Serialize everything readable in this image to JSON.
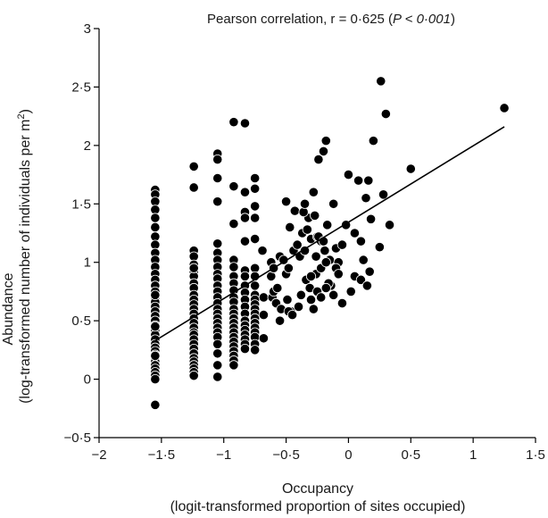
{
  "chart_data": {
    "type": "scatter",
    "title_main": "Pearson correlation, r = 0·625 (",
    "title_p": "P < 0·001",
    "title_close": ")",
    "xlabel_line1": "Occupancy",
    "xlabel_line2": "(logit-transformed proportion of sites occupied)",
    "ylabel_line1": "Abundance",
    "ylabel_line2_pre": "(log-transformed number of individuals per m",
    "ylabel_sup": "2",
    "ylabel_line2_post": ")",
    "xlim": [
      -2,
      1.5
    ],
    "ylim": [
      -0.5,
      3
    ],
    "xticks": [
      -2,
      -1.5,
      -1,
      -0.5,
      0,
      0.5,
      1,
      1.5
    ],
    "xtick_labels": [
      "−2",
      "−1·5",
      "−1",
      "−0·5",
      "0",
      "0·5",
      "1",
      "1·5"
    ],
    "yticks": [
      -0.5,
      0,
      0.5,
      1,
      1.5,
      2,
      2.5,
      3
    ],
    "ytick_labels": [
      "−0·5",
      "0",
      "0·5",
      "1",
      "1·5",
      "2",
      "2·5",
      "3"
    ],
    "grid": false,
    "regression_line": {
      "x": [
        -1.55,
        1.25
      ],
      "y": [
        0.33,
        2.16
      ]
    },
    "x": [
      -1.55,
      -1.55,
      -1.55,
      -1.55,
      -1.55,
      -1.55,
      -1.55,
      -1.55,
      -1.55,
      -1.55,
      -1.55,
      -1.55,
      -1.55,
      -1.55,
      -1.55,
      -1.55,
      -1.55,
      -1.55,
      -1.55,
      -1.55,
      -1.55,
      -1.55,
      -1.55,
      -1.55,
      -1.55,
      -1.55,
      -1.55,
      -1.55,
      -1.55,
      -1.55,
      -1.55,
      -1.55,
      -1.55,
      -1.55,
      -1.55,
      -1.55,
      -1.55,
      -1.55,
      -1.55,
      -1.55,
      -1.24,
      -1.24,
      -1.24,
      -1.24,
      -1.24,
      -1.24,
      -1.24,
      -1.24,
      -1.24,
      -1.24,
      -1.24,
      -1.24,
      -1.24,
      -1.24,
      -1.24,
      -1.24,
      -1.24,
      -1.24,
      -1.24,
      -1.24,
      -1.24,
      -1.24,
      -1.24,
      -1.24,
      -1.24,
      -1.24,
      -1.24,
      -1.24,
      -1.24,
      -1.24,
      -1.05,
      -1.05,
      -1.05,
      -1.05,
      -1.05,
      -1.05,
      -1.05,
      -1.05,
      -1.05,
      -1.05,
      -1.05,
      -1.05,
      -1.05,
      -1.05,
      -1.05,
      -1.05,
      -1.05,
      -1.05,
      -1.05,
      -1.05,
      -1.05,
      -1.05,
      -1.05,
      -1.05,
      -1.05,
      -0.92,
      -0.92,
      -0.92,
      -0.92,
      -0.92,
      -0.92,
      -0.92,
      -0.92,
      -0.92,
      -0.92,
      -0.92,
      -0.92,
      -0.92,
      -0.92,
      -0.92,
      -0.92,
      -0.92,
      -0.92,
      -0.92,
      -0.92,
      -0.92,
      -0.92,
      -0.92,
      -0.83,
      -0.83,
      -0.83,
      -0.83,
      -0.83,
      -0.83,
      -0.83,
      -0.83,
      -0.83,
      -0.83,
      -0.83,
      -0.83,
      -0.83,
      -0.83,
      -0.83,
      -0.83,
      -0.83,
      -0.83,
      -0.83,
      -0.75,
      -0.75,
      -0.75,
      -0.75,
      -0.75,
      -0.75,
      -0.75,
      -0.75,
      -0.75,
      -0.75,
      -0.75,
      -0.75,
      -0.75,
      -0.75,
      -0.75,
      -0.75,
      -0.75,
      -0.75,
      -0.75,
      -0.75,
      -0.69,
      -0.68,
      -0.68,
      -0.68,
      -0.62,
      -0.62,
      -0.61,
      -0.6,
      -0.6,
      -0.58,
      -0.57,
      -0.55,
      -0.54,
      -0.52,
      -0.5,
      -0.5,
      -0.49,
      -0.48,
      -0.47,
      -0.46,
      -0.44,
      -0.43,
      -0.41,
      -0.4,
      -0.39,
      -0.38,
      -0.37,
      -0.35,
      -0.34,
      -0.33,
      -0.32,
      -0.31,
      -0.3,
      -0.28,
      -0.27,
      -0.26,
      -0.25,
      -0.24,
      -0.22,
      -0.2,
      -0.19,
      -0.18,
      -0.17,
      -0.15,
      -0.14,
      -0.12,
      -0.1,
      -0.08,
      -0.05,
      -0.02,
      -0.36,
      -0.35,
      -0.3,
      -0.26,
      -0.24,
      -0.22,
      -0.2,
      -0.18,
      -0.16,
      -0.12,
      -0.1,
      -0.08,
      -0.05,
      0.0,
      0.02,
      0.05,
      0.08,
      0.1,
      0.12,
      0.14,
      0.16,
      0.17,
      0.18,
      0.2,
      0.25,
      0.26,
      0.28,
      0.3,
      0.33,
      0.5,
      1.25,
      -0.55,
      -0.48,
      -0.45,
      -0.4,
      -0.3,
      -0.28,
      -0.25,
      -0.22,
      -0.18,
      0.05,
      0.1,
      0.15
    ],
    "y": [
      1.62,
      1.58,
      1.52,
      1.45,
      1.38,
      1.3,
      1.22,
      1.15,
      1.08,
      1.02,
      0.96,
      0.9,
      0.85,
      0.8,
      0.75,
      0.7,
      0.66,
      0.62,
      0.58,
      0.54,
      0.5,
      0.46,
      0.42,
      0.38,
      0.34,
      0.3,
      0.27,
      0.24,
      0.21,
      0.18,
      0.15,
      0.12,
      0.09,
      0.06,
      0.03,
      0.0,
      -0.22,
      0.72,
      0.45,
      0.2,
      1.82,
      1.64,
      1.1,
      1.05,
      0.98,
      0.92,
      0.88,
      0.82,
      0.78,
      0.72,
      0.68,
      0.64,
      0.6,
      0.56,
      0.52,
      0.48,
      0.44,
      0.4,
      0.38,
      0.34,
      0.3,
      0.26,
      0.22,
      0.18,
      0.15,
      0.12,
      0.09,
      0.06,
      0.03,
      0.95,
      1.93,
      1.88,
      1.72,
      1.52,
      1.16,
      1.08,
      1.02,
      0.96,
      0.9,
      0.86,
      0.8,
      0.75,
      0.7,
      0.65,
      0.6,
      0.56,
      0.52,
      0.48,
      0.44,
      0.4,
      0.36,
      0.3,
      0.22,
      0.12,
      0.02,
      2.2,
      1.65,
      1.33,
      1.02,
      0.96,
      0.88,
      0.82,
      0.76,
      0.7,
      0.66,
      0.6,
      0.56,
      0.52,
      0.48,
      0.44,
      0.4,
      0.36,
      0.32,
      0.28,
      0.24,
      0.2,
      0.16,
      0.12,
      2.19,
      1.6,
      1.43,
      1.38,
      1.18,
      0.93,
      0.88,
      0.8,
      0.74,
      0.68,
      0.62,
      0.56,
      0.5,
      0.46,
      0.42,
      0.38,
      0.34,
      0.3,
      0.26,
      1.72,
      1.63,
      1.48,
      1.38,
      1.2,
      0.95,
      0.88,
      0.8,
      0.72,
      0.68,
      0.64,
      0.6,
      0.56,
      0.52,
      0.48,
      0.44,
      0.4,
      0.36,
      0.3,
      0.25,
      1.1,
      0.7,
      0.55,
      0.35,
      1.0,
      0.88,
      0.7,
      0.95,
      0.75,
      0.65,
      0.78,
      1.05,
      0.6,
      1.02,
      0.9,
      1.52,
      0.68,
      0.95,
      1.3,
      0.58,
      1.1,
      1.44,
      1.15,
      0.62,
      1.05,
      0.72,
      1.25,
      1.1,
      0.85,
      1.28,
      1.38,
      0.78,
      1.2,
      1.6,
      1.4,
      0.9,
      1.22,
      1.88,
      1.18,
      1.95,
      1.1,
      2.04,
      1.32,
      1.02,
      0.8,
      1.5,
      1.12,
      1.0,
      1.15,
      1.32,
      1.43,
      1.5,
      0.88,
      1.05,
      1.22,
      0.95,
      1.18,
      1.0,
      0.82,
      0.72,
      0.95,
      0.9,
      0.65,
      1.75,
      0.75,
      1.25,
      1.7,
      1.18,
      1.02,
      1.55,
      1.7,
      0.92,
      1.37,
      2.04,
      1.13,
      2.55,
      1.58,
      2.27,
      1.32,
      1.8,
      2.32,
      0.5,
      0.58,
      0.55,
      0.62,
      0.68,
      0.6,
      0.75,
      0.7,
      0.78,
      0.88,
      0.85,
      0.8
    ]
  }
}
